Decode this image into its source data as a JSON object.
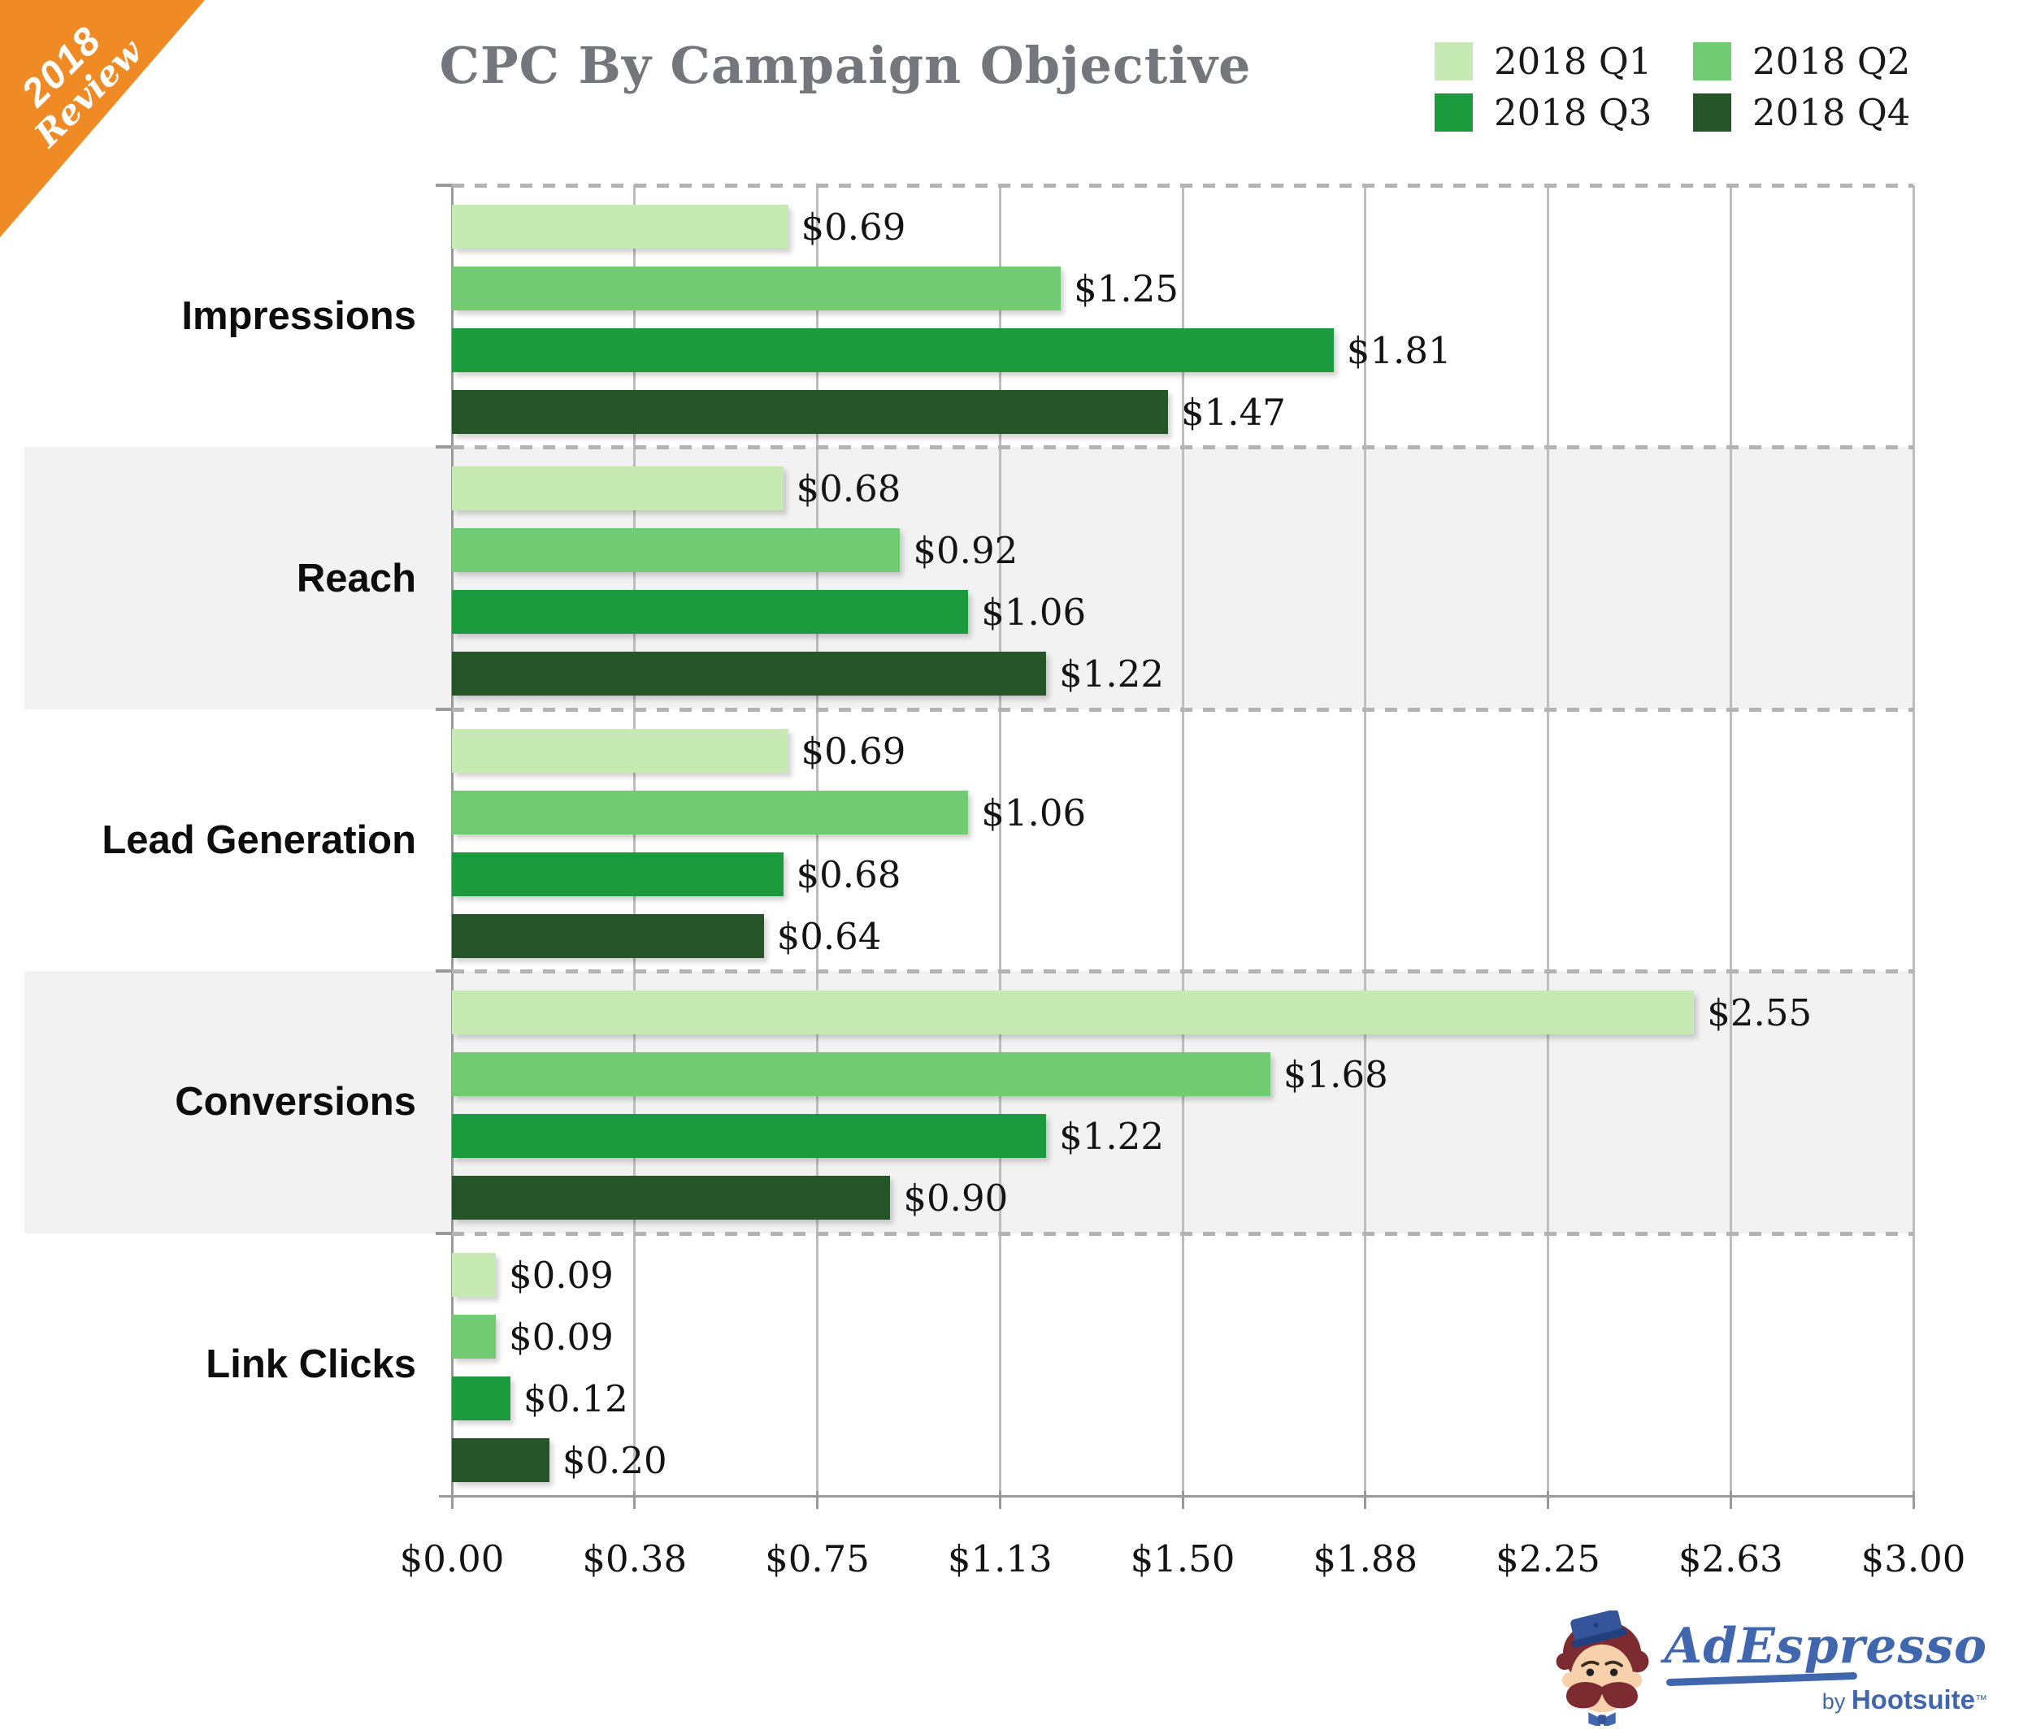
{
  "ribbon": {
    "line1": "2018",
    "line2": "Review",
    "color": "#f08a24",
    "text_color": "#ffffff"
  },
  "title": "CPC By Campaign Objective",
  "chart_data": {
    "type": "bar",
    "orientation": "horizontal",
    "title": "CPC By Campaign Objective",
    "categories": [
      "Impressions",
      "Reach",
      "Lead Generation",
      "Conversions",
      "Link Clicks"
    ],
    "series": [
      {
        "name": "2018 Q1",
        "color": "#c7e9b4",
        "values": [
          0.69,
          0.68,
          0.69,
          2.55,
          0.09
        ],
        "labels": [
          "$0.69",
          "$0.68",
          "$0.69",
          "$2.55",
          "$0.09"
        ]
      },
      {
        "name": "2018 Q2",
        "color": "#71cb73",
        "values": [
          1.25,
          0.92,
          1.06,
          1.68,
          0.09
        ],
        "labels": [
          "$1.25",
          "$0.92",
          "$1.06",
          "$1.68",
          "$0.09"
        ]
      },
      {
        "name": "2018 Q3",
        "color": "#1b9a3e",
        "values": [
          1.81,
          1.06,
          0.68,
          1.22,
          0.12
        ],
        "labels": [
          "$1.81",
          "$1.06",
          "$0.68",
          "$1.22",
          "$0.12"
        ]
      },
      {
        "name": "2018 Q4",
        "color": "#27552a",
        "values": [
          1.47,
          1.22,
          0.64,
          0.9,
          0.2
        ],
        "labels": [
          "$1.47",
          "$1.22",
          "$0.64",
          "$0.90",
          "$0.20"
        ]
      }
    ],
    "x_ticks": [
      "$0.00",
      "$0.38",
      "$0.75",
      "$1.13",
      "$1.50",
      "$1.88",
      "$2.25",
      "$2.63",
      "$3.00"
    ],
    "xlim": [
      0,
      3
    ],
    "xlabel": "",
    "ylabel": "",
    "gridlines": "vertical",
    "legend_position": "top-right",
    "shaded_category_rows": [
      1,
      3
    ]
  },
  "colors": {
    "band": "#f2f2f2",
    "gridline": "#bdbdbd",
    "axis": "#9a9a9a",
    "separator_dots": "#b3b3b3",
    "title_text": "#75767c",
    "category_text": "#0d0d0d",
    "value_text": "#141414",
    "logo_blue": "#4066ad"
  },
  "logo": {
    "name": "AdEspresso",
    "by": "by ",
    "brand": "Hootsuite",
    "tm": "™"
  }
}
